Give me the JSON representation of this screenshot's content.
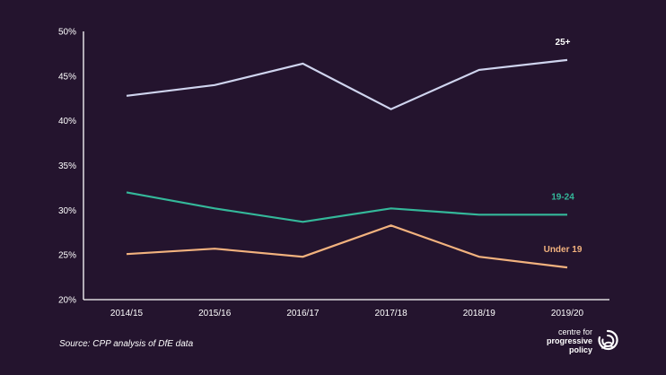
{
  "chart_data": {
    "type": "line",
    "categories": [
      "2014/15",
      "2015/16",
      "2016/17",
      "2017/18",
      "2018/19",
      "2019/20"
    ],
    "series": [
      {
        "name": "25+",
        "values": [
          42.8,
          44.0,
          46.4,
          41.3,
          45.7,
          46.8
        ],
        "color": "#cfd4ee"
      },
      {
        "name": "19-24",
        "values": [
          32.0,
          30.2,
          28.7,
          30.2,
          29.5,
          29.5
        ],
        "color": "#34b89a"
      },
      {
        "name": "Under 19",
        "values": [
          25.1,
          25.7,
          24.8,
          28.3,
          24.8,
          23.6
        ],
        "color": "#f2b27e"
      }
    ],
    "yticks": [
      "20%",
      "25%",
      "30%",
      "35%",
      "40%",
      "45%",
      "50%"
    ],
    "ylim": [
      20,
      50
    ],
    "grid": false,
    "legend": "inline-labels"
  },
  "source": "Source: CPP analysis of DfE data",
  "logo": {
    "line1": "centre for",
    "line2": "progressive",
    "line3": "policy"
  },
  "colors": {
    "background": "#24142e",
    "axis": "#ffffff"
  }
}
